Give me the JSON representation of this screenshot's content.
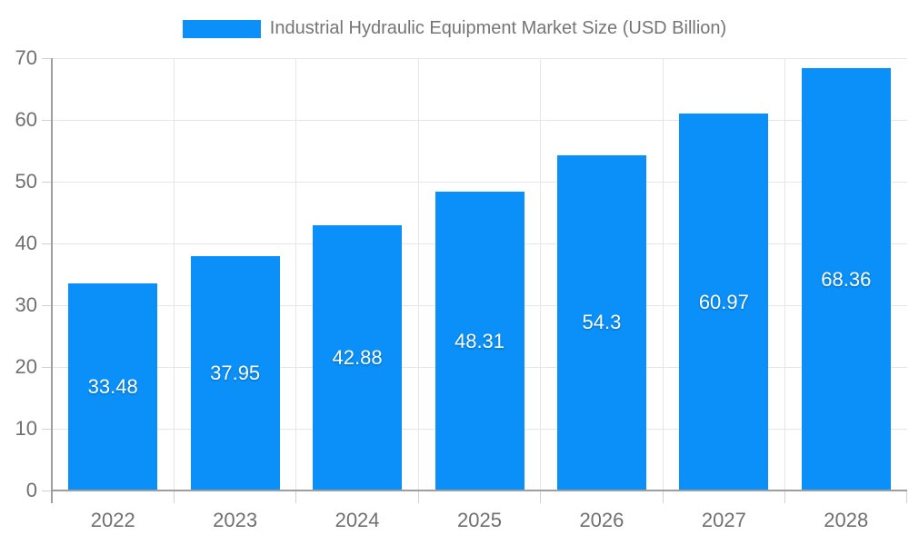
{
  "legend": {
    "label": "Industrial Hydraulic Equipment Market Size (USD Billion)"
  },
  "colors": {
    "bar": "#0a90f8",
    "legend_text": "#757575",
    "axis_text": "#707070",
    "grid": "#e6e6e6",
    "tick": "#d2d2d2",
    "axis_line": "#9e9e9e",
    "bar_label": "#ffffff",
    "background": "#ffffff"
  },
  "chart_data": {
    "type": "bar",
    "title": "Industrial Hydraulic Equipment Market Size (USD Billion)",
    "categories": [
      "2022",
      "2023",
      "2024",
      "2025",
      "2026",
      "2027",
      "2028"
    ],
    "values": [
      33.48,
      37.95,
      42.88,
      48.31,
      54.3,
      60.97,
      68.36
    ],
    "xlabel": "",
    "ylabel": "",
    "ylim": [
      0,
      70
    ],
    "yticks": [
      0,
      10,
      20,
      30,
      40,
      50,
      60,
      70
    ],
    "grid": true,
    "legend_position": "top",
    "bar_label_position": "center"
  }
}
